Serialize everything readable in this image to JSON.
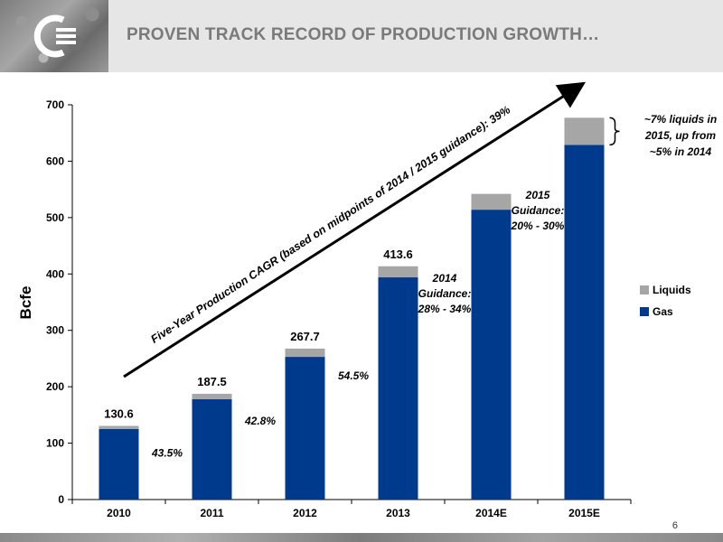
{
  "header": {
    "title": "PROVEN TRACK RECORD OF PRODUCTION GROWTH…",
    "page_number": "6"
  },
  "colors": {
    "gas": "#003a8c",
    "liquids": "#a6a6a6",
    "title": "#7a7a7a"
  },
  "chart_data": {
    "type": "bar",
    "stacked": true,
    "categories": [
      "2010",
      "2011",
      "2012",
      "2013",
      "2014E",
      "2015E"
    ],
    "series": [
      {
        "name": "Gas",
        "values": [
          125,
          178,
          253,
          394,
          514,
          629
        ]
      },
      {
        "name": "Liquids",
        "values": [
          5.6,
          9.5,
          14.7,
          19.6,
          28,
          48
        ]
      }
    ],
    "totals": [
      "130.6",
      "187.5",
      "267.7",
      "413.6",
      "",
      ""
    ],
    "growth_labels": [
      "43.5%",
      "42.8%",
      "54.5%",
      "",
      "",
      ""
    ],
    "guidance_2014": [
      "2014",
      "Guidance:",
      "28% - 34%"
    ],
    "guidance_2015": [
      "2015",
      "Guidance:",
      "20% - 30%"
    ],
    "liquids_note": [
      "~7% liquids in",
      "2015, up from",
      "~5% in 2014"
    ],
    "cagr_text": "Five-Year Production CAGR (based on midpoints of 2014 / 2015 guidance):  39%",
    "ylabel": "Bcfe",
    "ylim": [
      0,
      700
    ],
    "yticks": [
      0,
      100,
      200,
      300,
      400,
      500,
      600,
      700
    ],
    "legend": {
      "position": "right",
      "items": [
        "Liquids",
        "Gas"
      ]
    },
    "grid": false
  }
}
